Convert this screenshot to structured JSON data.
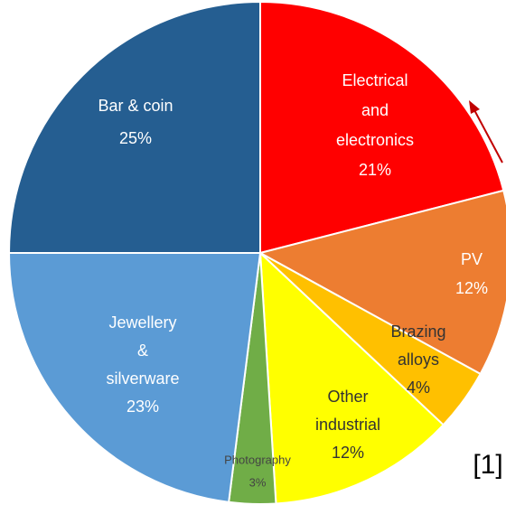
{
  "chart_data": {
    "type": "pie",
    "categories": [
      "Electrical and electronics",
      "PV",
      "Brazing alloys",
      "Other industrial",
      "Photography",
      "Jewellery & silverware",
      "Bar & coin"
    ],
    "values": [
      21,
      12,
      4,
      12,
      3,
      23,
      25
    ],
    "value_labels": [
      "21%",
      "12%",
      "4%",
      "12%",
      "3%",
      "23%",
      "25%"
    ],
    "colors": [
      "#ff0000",
      "#ed7d31",
      "#ffc000",
      "#ffff00",
      "#70ad47",
      "#5b9bd5",
      "#255e91"
    ],
    "annotation": "[1]"
  }
}
